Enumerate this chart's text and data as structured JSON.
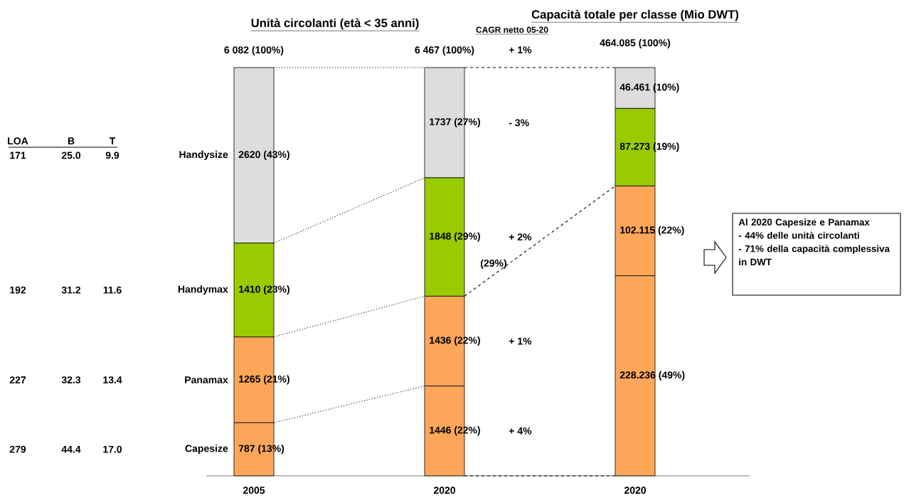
{
  "chart_data": {
    "type": "bar",
    "stacked": true,
    "title": "Unità circolanti (età < 35 anni)",
    "subtitle": "Capacità totale per classe (Mio DWT)",
    "categories": [
      "2005",
      "2020",
      "2020"
    ],
    "series": [
      {
        "name": "Capesize",
        "color": "#fca65a",
        "values": [
          13,
          22,
          49
        ],
        "value_labels": [
          "787 (13%)",
          "1446 (22%)",
          "228.236 (49%)"
        ]
      },
      {
        "name": "Panamax",
        "color": "#fca65a",
        "values": [
          21,
          22,
          22
        ],
        "value_labels": [
          "1265 (21%)",
          "1436 (22%)",
          "102.115 (22%)"
        ]
      },
      {
        "name": "Handymax",
        "color": "#99cc00",
        "values": [
          23,
          29,
          19
        ],
        "value_labels": [
          "1410 (23%)",
          "1848 (29%)",
          "87.273 (19%)"
        ]
      },
      {
        "name": "Handysize",
        "color": "#dddddd",
        "values": [
          43,
          27,
          10
        ],
        "value_labels": [
          "2620 (43%)",
          "1737 (27%)",
          "46.461 (10%)"
        ]
      }
    ],
    "totals": [
      "6 082 (100%)",
      "6 467 (100%)",
      "464.085 (100%)"
    ],
    "annotations": [
      "CAGR netto 05-20",
      "+ 1%",
      "- 3%",
      "+ 2%",
      "+ 1%",
      "+ 4%",
      "(29%)",
      "LOA",
      "B",
      "T",
      "171",
      "25.0",
      "9.9",
      "192",
      "31.2",
      "11.6",
      "227",
      "32.3",
      "13.4",
      "279",
      "44.4",
      "17.0",
      "Al 2020 Capesize e Panamax",
      "- 44% delle unità circolanti",
      "- 71% della capacità complessiva in DWT"
    ]
  }
}
